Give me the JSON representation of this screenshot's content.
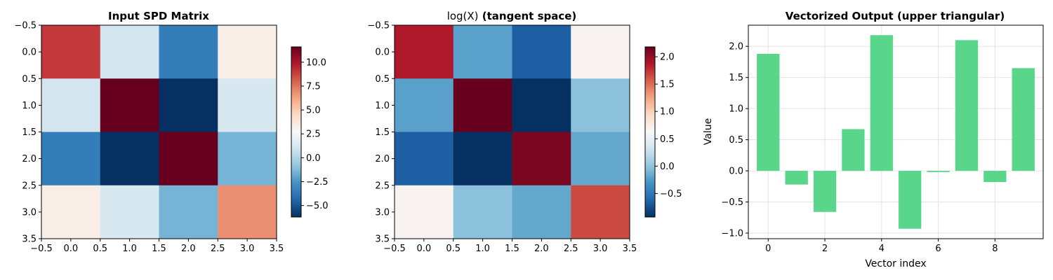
{
  "chart_data": [
    {
      "type": "heatmap",
      "title": "Input SPD Matrix",
      "cmap": "RdBu_r",
      "matrix": [
        [
          9.0,
          1.0,
          -3.5,
          3.3
        ],
        [
          1.0,
          11.6,
          -6.2,
          1.2
        ],
        [
          -3.5,
          -6.2,
          11.6,
          -1.5
        ],
        [
          3.3,
          1.2,
          -1.5,
          6.8
        ]
      ],
      "vmin": -6.2,
      "vmax": 11.6,
      "xlim": [
        -0.5,
        3.5
      ],
      "ylim": [
        3.5,
        -0.5
      ],
      "xticks": [
        "−0.5",
        "0.0",
        "0.5",
        "1.0",
        "1.5",
        "2.0",
        "2.5",
        "3.0",
        "3.5"
      ],
      "yticks": [
        "−0.5",
        "0.0",
        "0.5",
        "1.0",
        "1.5",
        "2.0",
        "2.5",
        "3.0",
        "3.5"
      ],
      "colorbar": {
        "ticks": [
          -5,
          -2.5,
          0,
          2.5,
          5,
          7.5,
          10
        ],
        "tick_labels": [
          "−5.0",
          "−2.5",
          "0.0",
          "2.5",
          "5.0",
          "7.5",
          "10.0"
        ]
      }
    },
    {
      "type": "heatmap",
      "title_math": "log(X)",
      "title_bold": " (tangent space)",
      "cmap": "RdBu_r",
      "matrix": [
        [
          1.88,
          -0.22,
          -0.66,
          0.67
        ],
        [
          -0.22,
          2.18,
          -0.93,
          -0.02
        ],
        [
          -0.66,
          -0.93,
          2.1,
          -0.18
        ],
        [
          0.67,
          -0.02,
          -0.18,
          1.65
        ]
      ],
      "vmin": -0.93,
      "vmax": 2.18,
      "xlim": [
        -0.5,
        3.5
      ],
      "ylim": [
        3.5,
        -0.5
      ],
      "xticks": [
        "−0.5",
        "0.0",
        "0.5",
        "1.0",
        "1.5",
        "2.0",
        "2.5",
        "3.0",
        "3.5"
      ],
      "yticks": [
        "−0.5",
        "0.0",
        "0.5",
        "1.0",
        "1.5",
        "2.0",
        "2.5",
        "3.0",
        "3.5"
      ],
      "colorbar": {
        "ticks": [
          -0.5,
          0,
          0.5,
          1.0,
          1.5,
          2.0
        ],
        "tick_labels": [
          "−0.5",
          "0.0",
          "0.5",
          "1.0",
          "1.5",
          "2.0"
        ]
      }
    },
    {
      "type": "bar",
      "title": "Vectorized Output (upper triangular)",
      "xlabel": "Vector index",
      "ylabel": "Value",
      "color": "#5ad68a",
      "grid": true,
      "x": [
        0,
        1,
        2,
        3,
        4,
        5,
        6,
        7,
        8,
        9
      ],
      "values": [
        1.88,
        -0.22,
        -0.66,
        0.67,
        2.18,
        -0.93,
        -0.02,
        2.1,
        -0.18,
        1.65
      ],
      "xlim": [
        -0.7,
        9.7
      ],
      "ylim": [
        -1.09,
        2.34
      ],
      "xticks": [
        0,
        2,
        4,
        6,
        8
      ],
      "xtick_labels": [
        "0",
        "2",
        "4",
        "6",
        "8"
      ],
      "yticks": [
        -1.0,
        -0.5,
        0,
        0.5,
        1.0,
        1.5,
        2.0
      ],
      "ytick_labels": [
        "−1.0",
        "−0.5",
        "0.0",
        "0.5",
        "1.0",
        "1.5",
        "2.0"
      ]
    }
  ]
}
